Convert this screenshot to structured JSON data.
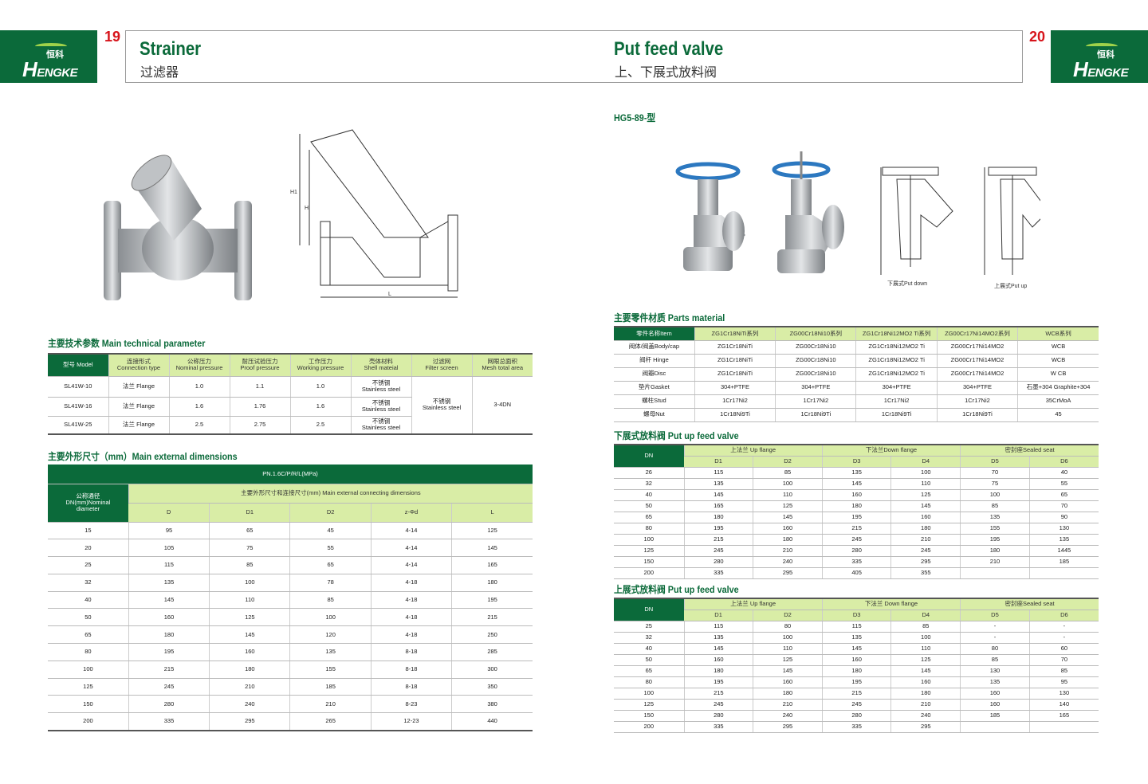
{
  "brand": {
    "name": "HENGKE",
    "cn": "恒科",
    "green": "#0b6a3a",
    "light_green": "#d9eda6",
    "red": "#d7141b"
  },
  "left": {
    "page": "19",
    "title": "Strainer",
    "subtitle": "过滤器",
    "tech_title": "主要技术参数 Main technical parameter",
    "tech_table": {
      "header": [
        "型号 Model",
        "连接形式\nConnection type",
        "公称压力\nNominal pressure",
        "耐压试验压力\nProof pressure",
        "工作压力\nWorking pressure",
        "壳体材料\nShell mateial",
        "过滤网\nFilter screen",
        "网眼总面积\nMesh total area"
      ],
      "rows": [
        [
          "SL41W-10",
          "法兰 Flange",
          "1.0",
          "1.1",
          "1.0",
          "不锈钢\nStainless steel"
        ],
        [
          "SL41W-16",
          "法兰 Flange",
          "1.6",
          "1.76",
          "1.6",
          "不锈钢\nStainless steel"
        ],
        [
          "SL41W-25",
          "法兰 Flange",
          "2.5",
          "2.75",
          "2.5",
          "不锈钢\nStainless steel"
        ]
      ],
      "filter_screen": "不锈钢\nStainless steel",
      "mesh_area": "3-4DN"
    },
    "dim_title": "主要外形尺寸（mm）Main external dimensions",
    "dim_table": {
      "pn": "PN.1.6C/P/R/L(MPa)",
      "dn_header": "公称通径\nDN(mm)Nominal\ndiameter",
      "group": "主要外形尺寸和连接尺寸(mm) Main external connecting dimensions",
      "columns": [
        "D",
        "D1",
        "D2",
        "z-Φd",
        "L"
      ],
      "rows": [
        [
          "15",
          "95",
          "65",
          "45",
          "4-14",
          "125"
        ],
        [
          "20",
          "105",
          "75",
          "55",
          "4-14",
          "145"
        ],
        [
          "25",
          "115",
          "85",
          "65",
          "4-14",
          "165"
        ],
        [
          "32",
          "135",
          "100",
          "78",
          "4-18",
          "180"
        ],
        [
          "40",
          "145",
          "110",
          "85",
          "4-18",
          "195"
        ],
        [
          "50",
          "160",
          "125",
          "100",
          "4-18",
          "215"
        ],
        [
          "65",
          "180",
          "145",
          "120",
          "4-18",
          "250"
        ],
        [
          "80",
          "195",
          "160",
          "135",
          "8-18",
          "285"
        ],
        [
          "100",
          "215",
          "180",
          "155",
          "8-18",
          "300"
        ],
        [
          "125",
          "245",
          "210",
          "185",
          "8-18",
          "350"
        ],
        [
          "150",
          "280",
          "240",
          "210",
          "8-23",
          "380"
        ],
        [
          "200",
          "335",
          "295",
          "265",
          "12-23",
          "440"
        ]
      ]
    },
    "drawing_labels": [
      "H1",
      "H",
      "L"
    ]
  },
  "right": {
    "page": "20",
    "title": "Put feed valve",
    "subtitle": "上、下展式放料阀",
    "model": "HG5-89-型",
    "captions": [
      "下展式Put down",
      "上展式Put up"
    ],
    "parts_title": "主要零件材质 Parts material",
    "parts_table": {
      "header": [
        "零件名称Item",
        "ZG1Cr18NiTi系列",
        "ZG00Cr18Ni10系列",
        "ZG1Cr18Ni12MO2 Ti系列",
        "ZG00Cr17Ni14MO2系列",
        "WCB系列"
      ],
      "rows": [
        [
          "阀体/阀盖Body/cap",
          "ZG1Cr18NiTi",
          "ZG00Cr18Ni10",
          "ZG1Cr18Ni12MO2 Ti",
          "ZG00Cr17Ni14MO2",
          "WCB"
        ],
        [
          "阀杆 Hinge",
          "ZG1Cr18NiTi",
          "ZG00Cr18Ni10",
          "ZG1Cr18Ni12MO2 Ti",
          "ZG00Cr17Ni14MO2",
          "WCB"
        ],
        [
          "阀瓣Disc",
          "ZG1Cr18NiTi",
          "ZG00Cr18Ni10",
          "ZG1Cr18Ni12MO2 Ti",
          "ZG00Cr17Ni14MO2",
          "W CB"
        ],
        [
          "垫片Gasket",
          "304+PTFE",
          "304+PTFE",
          "304+PTFE",
          "304+PTFE",
          "石墨+304 Graphite+304"
        ],
        [
          "螺柱Stud",
          "1Cr17Ni2",
          "1Cr17Ni2",
          "1Cr17Ni2",
          "1Cr17Ni2",
          "35CrMoA"
        ],
        [
          "螺母Nut",
          "1Cr18Ni9Ti",
          "1Cr18Ni9Ti",
          "1Cr18Ni9Ti",
          "1Cr18Ni9Ti",
          "45"
        ]
      ]
    },
    "down_title": "下展式放料阀 Put up feed valve",
    "down_table": {
      "groups": [
        "DN",
        "上法兰 Up flange",
        "下法兰Down flange",
        "密封座Sealed seat"
      ],
      "columns": [
        "D1",
        "D2",
        "D3",
        "D4",
        "D5",
        "D6"
      ],
      "rows": [
        [
          "26",
          "115",
          "85",
          "135",
          "100",
          "70",
          "40"
        ],
        [
          "32",
          "135",
          "100",
          "145",
          "110",
          "75",
          "55"
        ],
        [
          "40",
          "145",
          "110",
          "160",
          "125",
          "100",
          "65"
        ],
        [
          "50",
          "165",
          "125",
          "180",
          "145",
          "85",
          "70"
        ],
        [
          "65",
          "180",
          "145",
          "195",
          "160",
          "135",
          "90"
        ],
        [
          "80",
          "195",
          "160",
          "215",
          "180",
          "155",
          "130"
        ],
        [
          "100",
          "215",
          "180",
          "245",
          "210",
          "195",
          "135"
        ],
        [
          "125",
          "245",
          "210",
          "280",
          "245",
          "180",
          "1445"
        ],
        [
          "150",
          "280",
          "240",
          "335",
          "295",
          "210",
          "185"
        ],
        [
          "200",
          "335",
          "295",
          "405",
          "355",
          "",
          ""
        ]
      ]
    },
    "up_title": "上展式放料阀 Put up feed valve",
    "up_table": {
      "groups": [
        "DN",
        "上法兰 Up flange",
        "下法兰 Down flange",
        "密封座Sealed seat"
      ],
      "columns": [
        "D1",
        "D2",
        "D3",
        "D4",
        "D5",
        "D6"
      ],
      "rows": [
        [
          "25",
          "115",
          "80",
          "115",
          "85",
          "-",
          "-"
        ],
        [
          "32",
          "135",
          "100",
          "135",
          "100",
          "-",
          "-"
        ],
        [
          "40",
          "145",
          "110",
          "145",
          "110",
          "80",
          "60"
        ],
        [
          "50",
          "160",
          "125",
          "160",
          "125",
          "85",
          "70"
        ],
        [
          "65",
          "180",
          "145",
          "180",
          "145",
          "130",
          "85"
        ],
        [
          "80",
          "195",
          "160",
          "195",
          "160",
          "135",
          "95"
        ],
        [
          "100",
          "215",
          "180",
          "215",
          "180",
          "160",
          "130"
        ],
        [
          "125",
          "245",
          "210",
          "245",
          "210",
          "160",
          "140"
        ],
        [
          "150",
          "280",
          "240",
          "280",
          "240",
          "185",
          "165"
        ],
        [
          "200",
          "335",
          "295",
          "335",
          "295",
          "",
          ""
        ]
      ]
    }
  }
}
